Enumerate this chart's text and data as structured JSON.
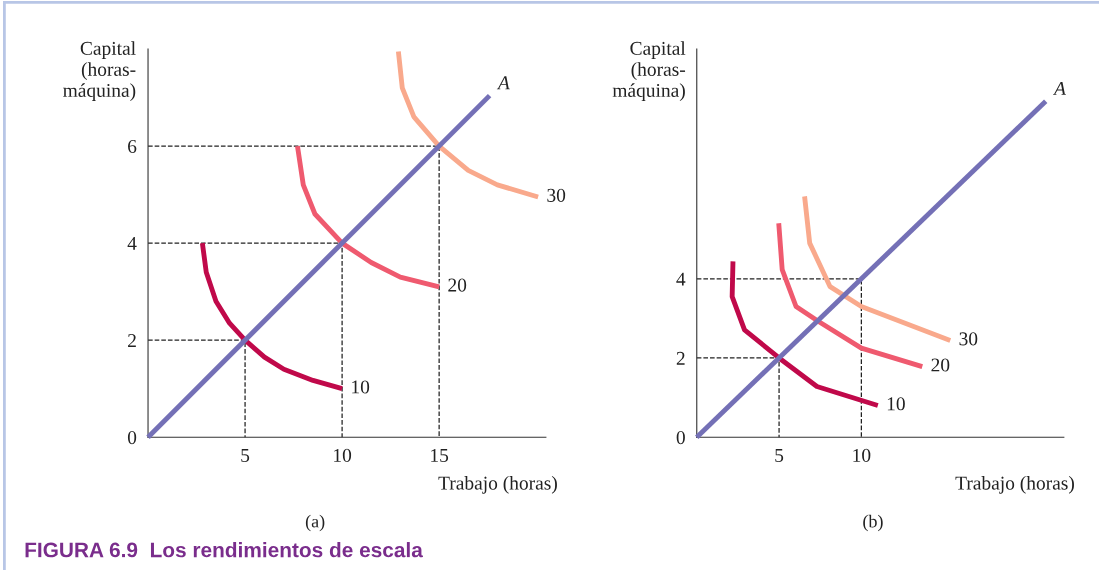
{
  "chart_data": [
    {
      "type": "line",
      "xlabel": "Trabajo (horas)",
      "ylabel": "Capital\n(horas-\nmáquina)",
      "xlim": [
        0,
        20.5
      ],
      "ylim": [
        0,
        8
      ],
      "xticks": [
        5,
        10,
        15
      ],
      "yticks": [
        0,
        2,
        4,
        6
      ],
      "grid": false,
      "legend": false,
      "annotations": [
        "(a)",
        "FIGURA 6.9  Los rendimientos de escala"
      ],
      "series": [
        {
          "name": "A",
          "color": "#7470b6",
          "line_style": "solid",
          "x": [
            0,
            17.6
          ],
          "values": [
            0,
            7.04
          ]
        },
        {
          "color": "#222222",
          "line_style": "dashed",
          "x": [
            0,
            5,
            5
          ],
          "values": [
            2,
            2,
            0
          ]
        },
        {
          "color": "#222222",
          "line_style": "dashed",
          "x": [
            0,
            10,
            10
          ],
          "values": [
            4,
            4,
            0
          ]
        },
        {
          "color": "#222222",
          "line_style": "dashed",
          "x": [
            0,
            15,
            15
          ],
          "values": [
            6,
            6,
            0
          ]
        },
        {
          "name": "10",
          "color": "#c0094a",
          "line_style": "solid",
          "x": [
            2.8,
            3.0,
            3.5,
            4.2,
            5,
            6,
            7,
            8.5,
            10
          ],
          "values": [
            4.0,
            3.4,
            2.8,
            2.35,
            2.0,
            1.65,
            1.4,
            1.17,
            1.0
          ]
        },
        {
          "name": "20",
          "color": "#ef5a6f",
          "line_style": "solid",
          "x": [
            7.7,
            8.0,
            8.6,
            10,
            11.5,
            13,
            15
          ],
          "values": [
            6.0,
            5.2,
            4.6,
            4.0,
            3.6,
            3.3,
            3.1
          ]
        },
        {
          "name": "30",
          "color": "#f9a98c",
          "line_style": "solid",
          "x": [
            12.9,
            13.1,
            13.7,
            15,
            16.5,
            18,
            20.1
          ],
          "values": [
            7.95,
            7.2,
            6.6,
            6.0,
            5.5,
            5.2,
            4.95
          ]
        }
      ]
    },
    {
      "type": "line",
      "xlabel": "Trabajo (horas)",
      "ylabel": "Capital\n(horas-\nmáquina)",
      "xlim": [
        0,
        22.3
      ],
      "ylim": [
        0,
        9.8
      ],
      "xticks": [
        5,
        10
      ],
      "yticks": [
        0,
        2,
        4
      ],
      "grid": false,
      "legend": false,
      "annotations": [
        "(b)"
      ],
      "series": [
        {
          "name": "A",
          "color": "#7470b6",
          "line_style": "solid",
          "x": [
            0,
            21.2
          ],
          "values": [
            0,
            8.48
          ]
        },
        {
          "color": "#222222",
          "line_style": "dashed",
          "x": [
            0,
            5,
            5
          ],
          "values": [
            2,
            2,
            0
          ]
        },
        {
          "color": "#222222",
          "line_style": "dashed",
          "x": [
            0,
            10,
            10
          ],
          "values": [
            4,
            4,
            0
          ]
        },
        {
          "name": "10",
          "color": "#c0094a",
          "line_style": "solid",
          "x": [
            2.2,
            2.15,
            2.9,
            5,
            7.3,
            11.0
          ],
          "values": [
            4.44,
            3.55,
            2.71,
            2.0,
            1.28,
            0.8
          ]
        },
        {
          "name": "20",
          "color": "#ef5a6f",
          "line_style": "solid",
          "x": [
            4.98,
            5.19,
            6.03,
            7.4,
            10,
            13.7
          ],
          "values": [
            5.4,
            4.23,
            3.3,
            2.92,
            2.25,
            1.78
          ]
        },
        {
          "name": "30",
          "color": "#f9a98c",
          "line_style": "solid",
          "x": [
            6.55,
            6.86,
            8.1,
            10,
            15.4
          ],
          "values": [
            6.08,
            4.9,
            3.8,
            3.3,
            2.44
          ]
        }
      ]
    }
  ]
}
